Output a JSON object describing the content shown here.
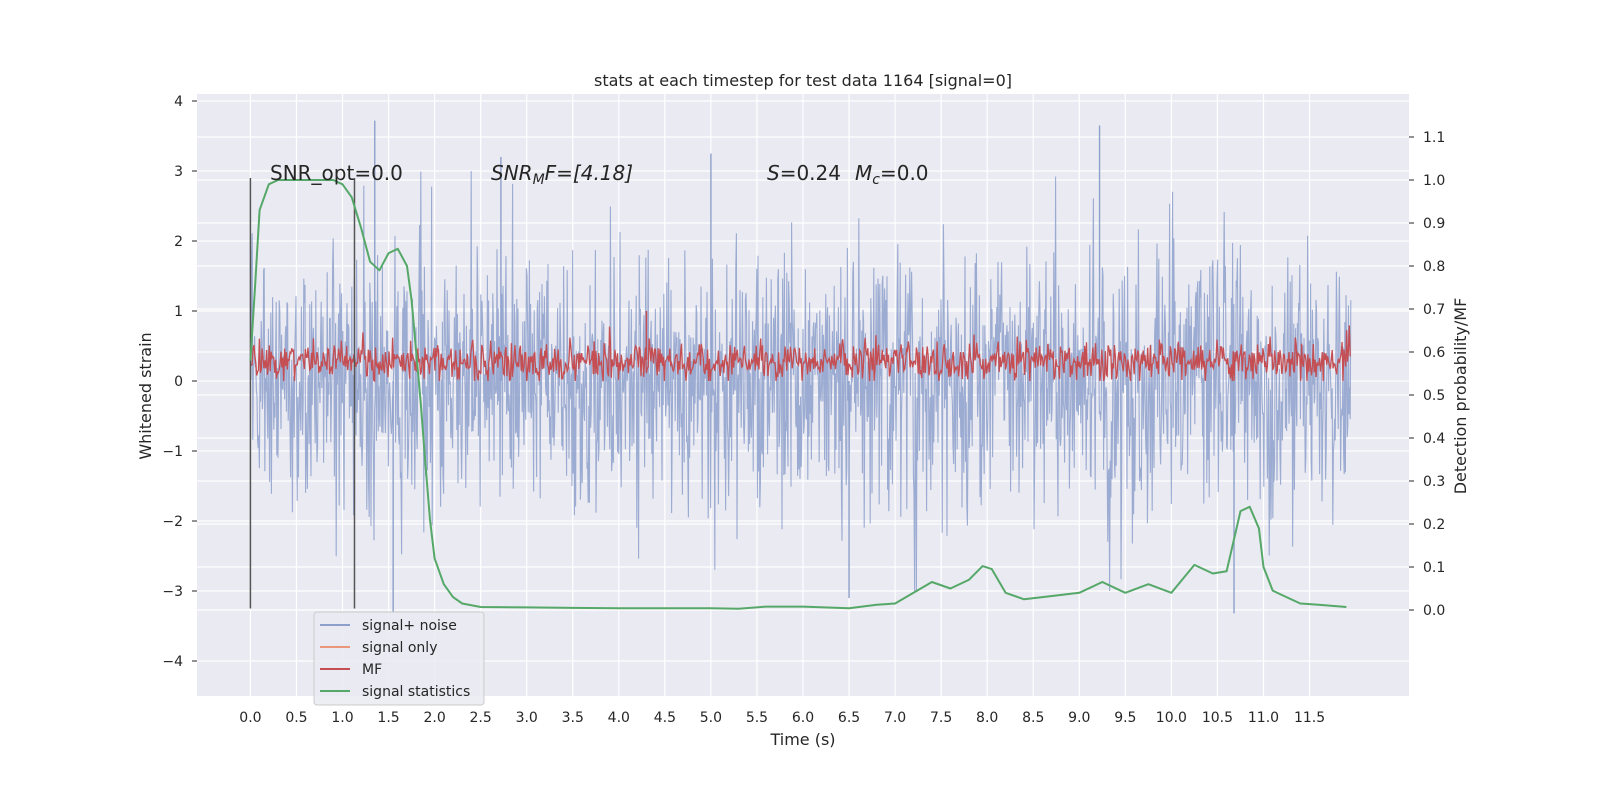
{
  "chart_data": {
    "type": "line",
    "title": "stats at each timestep for test data 1164 [signal=0]",
    "xlabel": "Time (s)",
    "ylabel_left": "Whitened strain",
    "ylabel_right": "Detection probability/MF",
    "xlim": [
      -0.58,
      12.58
    ],
    "ylim_left": [
      -4.5,
      4.1
    ],
    "ylim_right": [
      -0.2,
      1.2
    ],
    "x_ticks": [
      "0.0",
      "0.5",
      "1.0",
      "1.5",
      "2.0",
      "2.5",
      "3.0",
      "3.5",
      "4.0",
      "4.5",
      "5.0",
      "5.5",
      "6.0",
      "6.5",
      "7.0",
      "7.5",
      "8.0",
      "8.5",
      "9.0",
      "9.5",
      "10.0",
      "10.5",
      "11.0",
      "11.5"
    ],
    "y_ticks_left": [
      "−4",
      "−3",
      "−2",
      "−1",
      "0",
      "1",
      "2",
      "3",
      "4"
    ],
    "y_ticks_right": [
      "0.0",
      "0.1",
      "0.2",
      "0.3",
      "0.4",
      "0.5",
      "0.6",
      "0.7",
      "0.8",
      "0.9",
      "1.0",
      "1.1"
    ],
    "grid": true,
    "legend_position": "lower-left",
    "annotations": {
      "snr_opt": "SNR_opt=0.0",
      "snr_mf_base": "SNR",
      "snr_mf_sub": "M",
      "snr_mf_rest": "F=[4.18]",
      "s_sym": "S",
      "s_val": "=0.24",
      "mc_sym": "M",
      "mc_sub": "c",
      "mc_val": "=0.0"
    },
    "vlines_x": [
      0.0,
      1.13
    ],
    "series": [
      {
        "name": "signal+ noise",
        "color": "#8da0cb",
        "axis": "left",
        "style": "dense-noise",
        "x_range": [
          0.0,
          11.95
        ],
        "envelope_pos": [
          1.5,
          2.2
        ],
        "envelope_neg": [
          -1.5,
          -2.2
        ],
        "outliers": [
          {
            "x": 1.35,
            "y": 3.72
          },
          {
            "x": 9.22,
            "y": 3.65
          },
          {
            "x": 5.0,
            "y": 3.25
          },
          {
            "x": 2.72,
            "y": 3.2
          },
          {
            "x": 1.55,
            "y": -3.3
          },
          {
            "x": 10.68,
            "y": -3.32
          },
          {
            "x": 6.5,
            "y": -3.1
          }
        ]
      },
      {
        "name": "signal only",
        "color": "#e9967a",
        "axis": "left",
        "values": []
      },
      {
        "name": "MF",
        "color": "#c44e52",
        "axis": "left",
        "style": "dense-noise",
        "x_range": [
          0.0,
          11.95
        ],
        "band": [
          0.0,
          0.55
        ],
        "peak": {
          "x": 4.3,
          "y": 1.0
        }
      },
      {
        "name": "signal statistics",
        "color": "#55a868",
        "axis": "right",
        "x": [
          0.0,
          0.05,
          0.1,
          0.2,
          0.3,
          0.5,
          0.7,
          0.9,
          1.0,
          1.1,
          1.2,
          1.3,
          1.4,
          1.5,
          1.6,
          1.7,
          1.75,
          1.8,
          1.85,
          1.9,
          1.95,
          2.0,
          2.1,
          2.2,
          2.3,
          2.5,
          3.0,
          3.5,
          4.0,
          4.5,
          5.0,
          5.3,
          5.6,
          6.0,
          6.5,
          6.8,
          7.0,
          7.2,
          7.4,
          7.6,
          7.8,
          7.95,
          8.05,
          8.2,
          8.4,
          8.6,
          9.0,
          9.25,
          9.5,
          9.75,
          10.0,
          10.25,
          10.45,
          10.6,
          10.75,
          10.85,
          10.95,
          11.0,
          11.1,
          11.2,
          11.4,
          11.6,
          11.9
        ],
        "values": [
          0.58,
          0.75,
          0.93,
          0.99,
          1.0,
          1.0,
          1.0,
          1.0,
          0.99,
          0.96,
          0.89,
          0.81,
          0.79,
          0.83,
          0.84,
          0.8,
          0.72,
          0.6,
          0.48,
          0.34,
          0.21,
          0.12,
          0.06,
          0.03,
          0.015,
          0.007,
          0.006,
          0.005,
          0.004,
          0.004,
          0.004,
          0.003,
          0.008,
          0.008,
          0.004,
          0.012,
          0.015,
          0.04,
          0.065,
          0.05,
          0.07,
          0.102,
          0.095,
          0.04,
          0.025,
          0.03,
          0.04,
          0.065,
          0.04,
          0.06,
          0.04,
          0.105,
          0.085,
          0.09,
          0.23,
          0.24,
          0.19,
          0.1,
          0.045,
          0.035,
          0.015,
          0.012,
          0.007
        ]
      }
    ]
  }
}
